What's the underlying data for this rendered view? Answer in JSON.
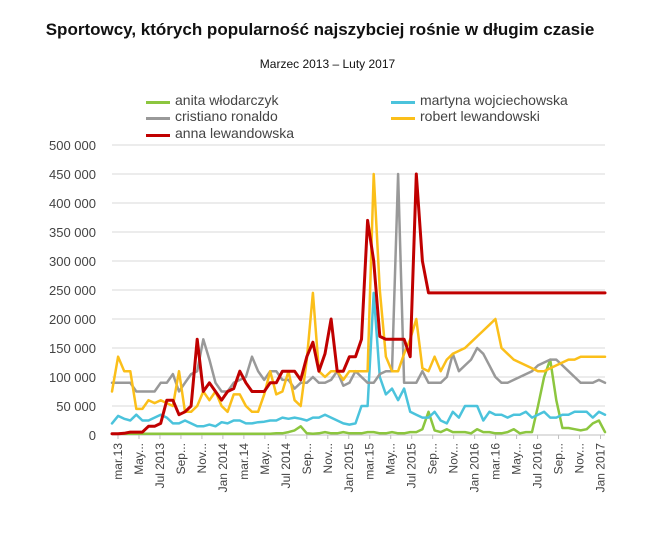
{
  "chart_data": {
    "type": "line",
    "title": "Sportowcy, których popularność najszybciej rośnie w długim czasie",
    "subtitle": "Marzec 2013 – Luty 2017",
    "xlabel": "",
    "ylabel": "",
    "ylim": [
      0,
      500000
    ],
    "yticks": [
      0,
      50000,
      100000,
      150000,
      200000,
      250000,
      300000,
      350000,
      400000,
      450000,
      500000
    ],
    "ytick_labels": [
      "0",
      "50 000",
      "100 000",
      "150 000",
      "200 000",
      "250 000",
      "300 000",
      "350 000",
      "400 000",
      "450 000",
      "500 000"
    ],
    "grid": true,
    "legend_position": "top",
    "x_labels": [
      "mar.13",
      "May...",
      "Jul 2013",
      "Sep...",
      "Nov...",
      "Jan 2014",
      "mar.14",
      "May...",
      "Jul 2014",
      "Sep...",
      "Nov...",
      "Jan 2015",
      "mar.15",
      "May...",
      "Jul 2015",
      "Sep...",
      "Nov...",
      "Jan 2016",
      "mar.16",
      "May...",
      "Jul 2016",
      "Sep...",
      "Nov...",
      "Jan 2017"
    ],
    "series": [
      {
        "name": "anita włodarczyk",
        "color": "#8cc63f",
        "values": [
          2000,
          2000,
          2000,
          2000,
          2000,
          2000,
          2000,
          2000,
          2000,
          2000,
          2000,
          2000,
          2000,
          2000,
          2000,
          2000,
          2000,
          2000,
          2000,
          2000,
          2000,
          2000,
          2000,
          2000,
          2000,
          2000,
          2000,
          3000,
          3000,
          5000,
          8000,
          15000,
          3000,
          2000,
          3000,
          5000,
          3000,
          3000,
          5000,
          3000,
          3000,
          3000,
          5000,
          5000,
          3000,
          3000,
          5000,
          3000,
          3000,
          5000,
          5000,
          10000,
          40000,
          8000,
          5000,
          10000,
          5000,
          5000,
          5000,
          3000,
          10000,
          5000,
          5000,
          3000,
          3000,
          5000,
          10000,
          3000,
          5000,
          5000,
          50000,
          100000,
          130000,
          60000,
          12000,
          12000,
          10000,
          8000,
          10000,
          20000,
          25000,
          5000
        ]
      },
      {
        "name": "martyna wojciechowska",
        "color": "#4bc3dc",
        "values": [
          20000,
          33000,
          28000,
          25000,
          35000,
          25000,
          25000,
          30000,
          35000,
          30000,
          20000,
          20000,
          25000,
          20000,
          15000,
          15000,
          18000,
          15000,
          22000,
          20000,
          25000,
          25000,
          20000,
          20000,
          22000,
          23000,
          25000,
          25000,
          30000,
          28000,
          30000,
          28000,
          25000,
          30000,
          30000,
          35000,
          30000,
          25000,
          20000,
          18000,
          20000,
          50000,
          50000,
          245000,
          100000,
          70000,
          80000,
          60000,
          80000,
          40000,
          35000,
          30000,
          30000,
          40000,
          25000,
          20000,
          40000,
          30000,
          50000,
          50000,
          50000,
          25000,
          40000,
          35000,
          35000,
          30000,
          35000,
          35000,
          40000,
          30000,
          35000,
          40000,
          30000,
          30000,
          35000,
          35000,
          40000,
          40000,
          40000,
          30000,
          40000,
          35000
        ]
      },
      {
        "name": "cristiano ronaldo",
        "color": "#999999",
        "values": [
          90000,
          90000,
          90000,
          90000,
          75000,
          75000,
          75000,
          75000,
          90000,
          90000,
          105000,
          75000,
          90000,
          105000,
          110000,
          165000,
          130000,
          90000,
          75000,
          75000,
          90000,
          95000,
          100000,
          135000,
          110000,
          95000,
          110000,
          110000,
          95000,
          95000,
          80000,
          90000,
          90000,
          100000,
          90000,
          90000,
          95000,
          110000,
          85000,
          90000,
          110000,
          100000,
          90000,
          90000,
          105000,
          110000,
          110000,
          450000,
          90000,
          90000,
          90000,
          110000,
          90000,
          90000,
          90000,
          100000,
          140000,
          110000,
          120000,
          130000,
          150000,
          140000,
          120000,
          100000,
          90000,
          90000,
          95000,
          100000,
          105000,
          110000,
          120000,
          125000,
          130000,
          130000,
          120000,
          110000,
          100000,
          90000,
          90000,
          90000,
          95000,
          90000
        ]
      },
      {
        "name": "robert lewandowski",
        "color": "#fbbf1a",
        "values": [
          75000,
          135000,
          110000,
          110000,
          45000,
          45000,
          60000,
          55000,
          60000,
          55000,
          50000,
          110000,
          40000,
          40000,
          50000,
          75000,
          60000,
          75000,
          50000,
          40000,
          70000,
          70000,
          50000,
          40000,
          40000,
          70000,
          110000,
          70000,
          75000,
          110000,
          60000,
          50000,
          130000,
          245000,
          110000,
          100000,
          110000,
          110000,
          95000,
          110000,
          110000,
          110000,
          110000,
          450000,
          250000,
          135000,
          110000,
          110000,
          140000,
          165000,
          200000,
          115000,
          110000,
          135000,
          110000,
          130000,
          140000,
          145000,
          150000,
          160000,
          170000,
          180000,
          190000,
          200000,
          150000,
          140000,
          130000,
          125000,
          120000,
          115000,
          110000,
          110000,
          115000,
          120000,
          125000,
          130000,
          130000,
          135000,
          135000,
          135000,
          135000,
          135000
        ]
      },
      {
        "name": "anna lewandowska",
        "color": "#c00000",
        "values": [
          2000,
          2000,
          3000,
          5000,
          5000,
          5000,
          15000,
          15000,
          20000,
          60000,
          60000,
          35000,
          40000,
          50000,
          165000,
          75000,
          90000,
          75000,
          60000,
          75000,
          80000,
          110000,
          90000,
          75000,
          75000,
          75000,
          90000,
          90000,
          110000,
          110000,
          110000,
          95000,
          135000,
          160000,
          110000,
          140000,
          200000,
          110000,
          110000,
          135000,
          135000,
          165000,
          370000,
          300000,
          170000,
          165000,
          165000,
          165000,
          165000,
          135000,
          450000,
          300000,
          245000,
          245000,
          245000,
          245000,
          245000,
          245000,
          245000,
          245000,
          245000,
          245000,
          245000,
          245000,
          245000,
          245000,
          245000,
          245000,
          245000,
          245000,
          245000,
          245000,
          245000,
          245000,
          245000,
          245000,
          245000,
          245000,
          245000,
          245000,
          245000,
          245000
        ]
      }
    ]
  }
}
